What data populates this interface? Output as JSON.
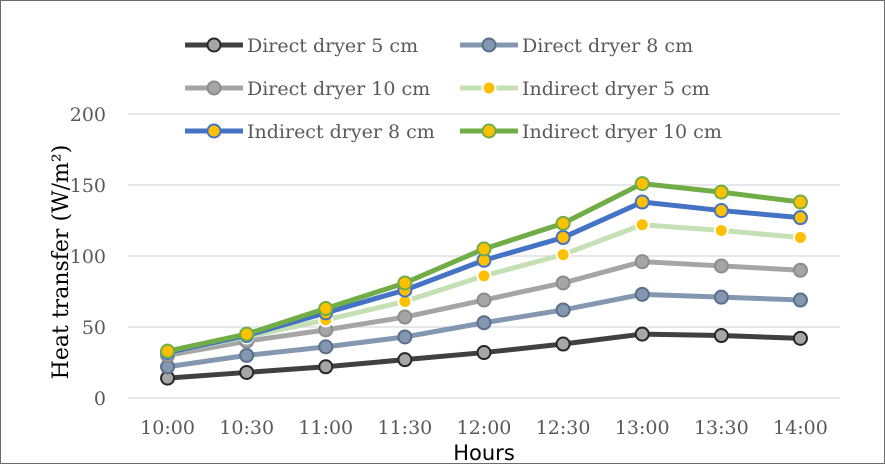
{
  "chart_data": {
    "type": "line",
    "title": "",
    "xlabel": "Hours",
    "ylabel": "Heat transfer  (W/m²)",
    "ylim": [
      0,
      200
    ],
    "yticks": [
      0,
      50,
      100,
      150,
      200
    ],
    "grid": true,
    "legend_position": "top",
    "categories": [
      "10:00",
      "10:30",
      "11:00",
      "11:30",
      "12:00",
      "12:30",
      "13:00",
      "13:30",
      "14:00"
    ],
    "series": [
      {
        "name": "Direct dryer 5 cm",
        "values": [
          14,
          18,
          22,
          27,
          32,
          38,
          45,
          44,
          42
        ],
        "line_color": "#404040",
        "marker_fill": "#a6a6a6",
        "marker_stroke": "#262626"
      },
      {
        "name": "Direct dryer 8 cm",
        "values": [
          22,
          30,
          36,
          43,
          53,
          62,
          73,
          71,
          69
        ],
        "line_color": "#8497b0",
        "marker_fill": "#8497b0",
        "marker_stroke": "#5b6e8a"
      },
      {
        "name": "Direct dryer 10 cm",
        "values": [
          30,
          40,
          48,
          57,
          69,
          81,
          96,
          93,
          90
        ],
        "line_color": "#a5a5a5",
        "marker_fill": "#a5a5a5",
        "marker_stroke": "#8c8c8c"
      },
      {
        "name": "Indirect dryer 5 cm",
        "values": [
          32,
          43,
          55,
          68,
          86,
          101,
          122,
          118,
          113
        ],
        "line_color": "#c5e0b4",
        "marker_fill": "#ffc000",
        "marker_stroke": "#ffffff"
      },
      {
        "name": "Indirect dryer 8 cm",
        "values": [
          32,
          44,
          60,
          76,
          97,
          113,
          138,
          132,
          127
        ],
        "line_color": "#4472c4",
        "marker_fill": "#ffc000",
        "marker_stroke": "#4472c4"
      },
      {
        "name": "Indirect dryer 10 cm",
        "values": [
          33,
          45,
          63,
          81,
          105,
          123,
          151,
          145,
          138
        ],
        "line_color": "#70ad47",
        "marker_fill": "#ffc000",
        "marker_stroke": "#70ad47"
      }
    ]
  }
}
